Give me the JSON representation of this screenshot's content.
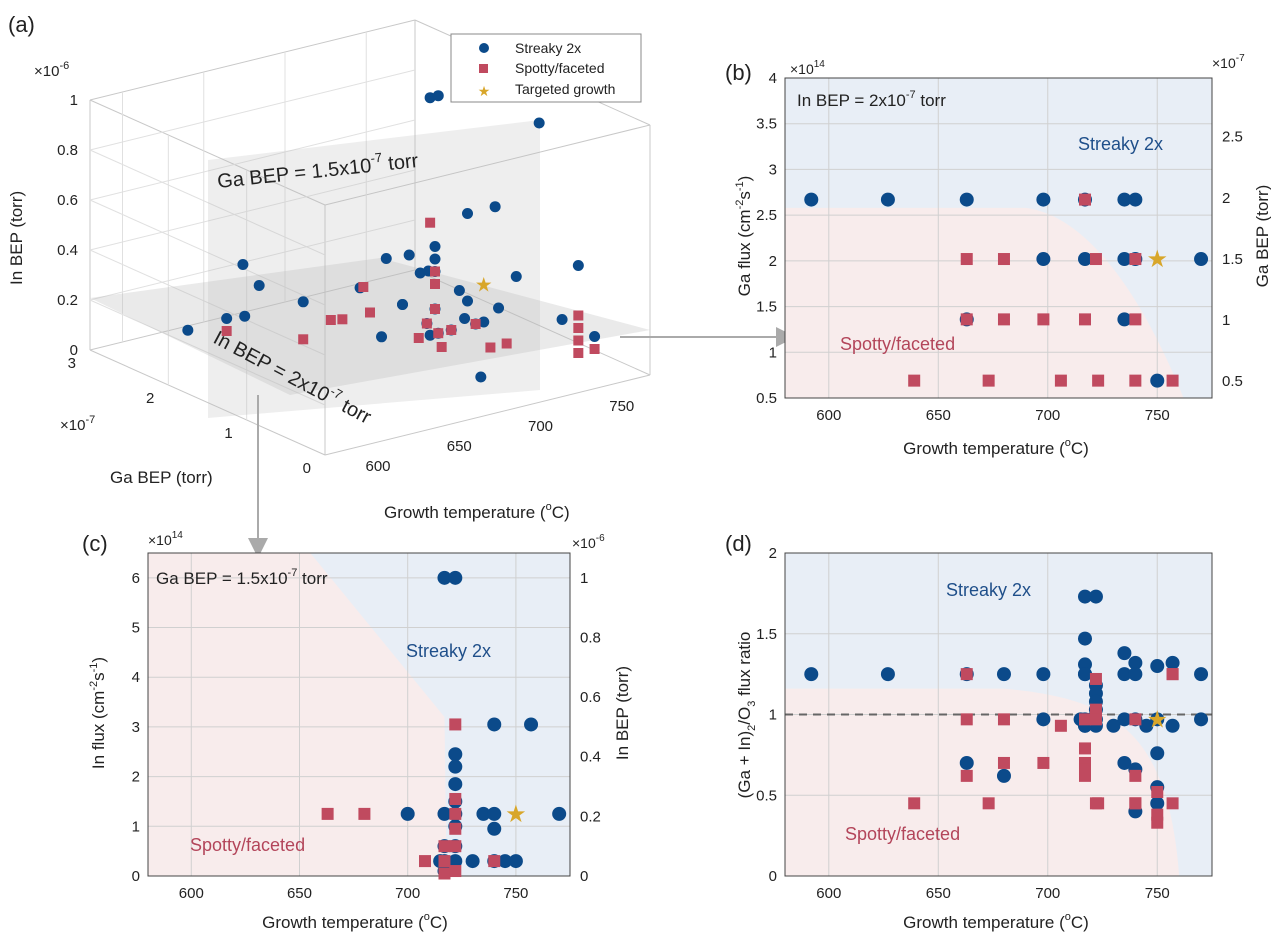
{
  "colors": {
    "streaky": "#0b4a8a",
    "spotty": "#c04a5f",
    "star": "#d8a62a",
    "region_blue": "#e8eef6",
    "region_pink": "#f8ecec"
  },
  "panels": {
    "a": {
      "letter": "(a)",
      "exponent_in": "×10",
      "exponent_in_sup": "-6",
      "exponent_ga": "×10",
      "exponent_ga_sup": "-7",
      "zlabel": "In BEP (torr)",
      "ylabel": "Ga BEP (torr)",
      "xlabel": "Growth temperature (",
      "xlabel_sup": "o",
      "xlabel_end": "C)",
      "plane_vertical": "Ga BEP = 1.5x10",
      "plane_vertical_sup": "-7",
      "plane_vertical_end": " torr",
      "plane_horizontal": "In BEP = 2x10",
      "plane_horizontal_sup": "-7",
      "plane_horizontal_end": " torr",
      "legend": [
        "Streaky 2x",
        "Spotty/faceted",
        "Targeted growth"
      ],
      "ztick_labels": [
        "0",
        "0.2",
        "0.4",
        "0.6",
        "0.8",
        "1"
      ],
      "ytick_labels": [
        "0",
        "1",
        "2",
        "3"
      ],
      "xtick_labels": [
        "600",
        "650",
        "700",
        "750"
      ]
    },
    "b": {
      "letter": "(b)",
      "annotation": "In BEP = 2x10",
      "annotation_sup": "-7",
      "annotation_end": " torr",
      "region_top": "Streaky 2x",
      "region_bottom": "Spotty/faceted",
      "ylabel": "Ga flux (cm",
      "ylabel_sup1": "-2",
      "ylabel_mid": "s",
      "ylabel_sup2": "-1",
      "ylabel_end": ")",
      "y2label": "Ga BEP (torr)",
      "xlabel": "Growth temperature (",
      "xlabel_sup": "o",
      "xlabel_end": "C)",
      "exponent_left": "×10",
      "exponent_left_sup": "14",
      "exponent_right": "×10",
      "exponent_right_sup": "-7"
    },
    "c": {
      "letter": "(c)",
      "annotation": "Ga BEP = 1.5x10",
      "annotation_sup": "-7",
      "annotation_end": " torr",
      "region_top": "Streaky 2x",
      "region_bottom": "Spotty/faceted",
      "ylabel": "In flux (cm",
      "ylabel_sup1": "-2",
      "ylabel_mid": "s",
      "ylabel_sup2": "-1",
      "ylabel_end": ")",
      "y2label": "In BEP (torr)",
      "xlabel": "Growth temperature (",
      "xlabel_sup": "o",
      "xlabel_end": "C)",
      "exponent_left": "×10",
      "exponent_left_sup": "14",
      "exponent_right": "×10",
      "exponent_right_sup": "-6"
    },
    "d": {
      "letter": "(d)",
      "region_top": "Streaky 2x",
      "region_bottom": "Spotty/faceted",
      "ylabel": "(Ga + In)",
      "ylabel_sub1": "2",
      "ylabel_mid": "/O",
      "ylabel_sub2": "3",
      "ylabel_end": " flux ratio",
      "xlabel": "Growth temperature (",
      "xlabel_sup": "o",
      "xlabel_end": "C)"
    }
  },
  "chart_data": [
    {
      "panel": "a",
      "type": "scatter",
      "xlabel": "Growth temperature (oC)",
      "ylabel": "Ga BEP (torr) ×10^-7",
      "zlabel": "In BEP (torr) ×10^-6",
      "xlim": [
        580,
        780
      ],
      "ylim": [
        0,
        3
      ],
      "zlim": [
        0,
        1
      ],
      "legend": "top-center",
      "series": [
        {
          "name": "Streaky 2x",
          "points": [
            [
              717,
              1.5,
              1.0
            ],
            [
              722,
              1.5,
              1.0
            ],
            [
              760,
              1.0,
              0.9
            ],
            [
              592,
              2.0,
              0.2
            ],
            [
              627,
              2.0,
              0.2
            ],
            [
              663,
              2.0,
              0.2
            ],
            [
              698,
              2.0,
              0.2
            ],
            [
              735,
              2.0,
              0.2
            ],
            [
              740,
              2.0,
              0.2
            ],
            [
              700,
              1.5,
              0.2
            ],
            [
              740,
              1.5,
              0.5
            ],
            [
              757,
              1.5,
              0.5
            ],
            [
              770,
              1.5,
              0.2
            ],
            [
              735,
              1.0,
              0.2
            ],
            [
              663,
              1.0,
              0.2
            ],
            [
              750,
              0.5,
              0.2
            ],
            [
              717,
              1.5,
              0.05
            ],
            [
              722,
              1.5,
              0.05
            ],
            [
              715,
              1.5,
              0.1
            ],
            [
              720,
              1.5,
              0.15
            ],
            [
              720,
              1.5,
              0.3
            ],
            [
              720,
              1.5,
              0.35
            ],
            [
              720,
              1.5,
              0.4
            ],
            [
              730,
              1.5,
              0.05
            ],
            [
              745,
              1.5,
              0.05
            ],
            [
              750,
              1.5,
              0.05
            ],
            [
              740,
              1.5,
              0.15
            ],
            [
              735,
              1.5,
              0.2
            ],
            [
              700,
              1.5,
              0.2
            ],
            [
              680,
              1.0,
              0.5
            ],
            [
              690,
              0.5,
              0.3
            ],
            [
              650,
              2.5,
              0.3
            ],
            [
              640,
              2.5,
              0.1
            ],
            [
              760,
              0.5,
              0.4
            ],
            [
              770,
              0.5,
              0.1
            ],
            [
              700,
              0.5,
              0.05
            ],
            [
              660,
              2.5,
              0.2
            ],
            [
              690,
              1.5,
              0.4
            ]
          ]
        },
        {
          "name": "Spotty/faceted",
          "points": [
            [
              663,
              1.5,
              0.2
            ],
            [
              680,
              1.5,
              0.2
            ],
            [
              717,
              1.5,
              0.5
            ],
            [
              722,
              1.5,
              0.05
            ],
            [
              745,
              1.5,
              0.05
            ],
            [
              740,
              1.0,
              0.05
            ],
            [
              760,
              0.5,
              0.05
            ],
            [
              760,
              0.5,
              0.1
            ],
            [
              760,
              0.5,
              0.15
            ],
            [
              760,
              0.5,
              0.2
            ],
            [
              710,
              1.5,
              0.05
            ],
            [
              715,
              1.5,
              0.1
            ],
            [
              720,
              1.5,
              0.15
            ],
            [
              720,
              1.5,
              0.25
            ],
            [
              720,
              1.5,
              0.3
            ],
            [
              730,
              1.5,
              0.05
            ],
            [
              663,
              2.0,
              0.05
            ],
            [
              680,
              2.0,
              0.1
            ],
            [
              700,
              2.0,
              0.2
            ],
            [
              640,
              2.5,
              0.05
            ],
            [
              700,
              1.0,
              0.1
            ],
            [
              730,
              1.0,
              0.05
            ],
            [
              770,
              0.5,
              0.05
            ]
          ]
        },
        {
          "name": "Targeted growth",
          "points": [
            [
              750,
              1.5,
              0.2
            ]
          ]
        }
      ]
    },
    {
      "panel": "b",
      "type": "scatter",
      "xlabel": "Growth temperature (oC)",
      "ylabel": "Ga flux (cm-2s-1) ×10^14",
      "y2label": "Ga BEP (torr) ×10^-7",
      "xlim": [
        580,
        775
      ],
      "ylim": [
        0.5,
        4
      ],
      "y2ticks": [
        "0.5",
        "1",
        "1.5",
        "2",
        "2.5"
      ],
      "xticks": [
        "600",
        "650",
        "700",
        "750"
      ],
      "yticks": [
        "0.5",
        "1",
        "1.5",
        "2",
        "2.5",
        "3",
        "3.5",
        "4"
      ],
      "series": [
        {
          "name": "Streaky 2x",
          "x": [
            592,
            627,
            663,
            698,
            717,
            735,
            740,
            698,
            717,
            735,
            740,
            770,
            663,
            735,
            750
          ],
          "y": [
            2.67,
            2.67,
            2.67,
            2.67,
            2.67,
            2.67,
            2.67,
            2.02,
            2.02,
            2.02,
            2.02,
            2.02,
            1.36,
            1.36,
            0.69
          ]
        },
        {
          "name": "Spotty/faceted",
          "x": [
            717,
            663,
            680,
            722,
            740,
            663,
            680,
            698,
            717,
            740,
            639,
            673,
            706,
            723,
            740,
            757
          ],
          "y": [
            2.67,
            2.02,
            2.02,
            2.02,
            2.02,
            1.36,
            1.36,
            1.36,
            1.36,
            1.36,
            0.69,
            0.69,
            0.69,
            0.69,
            0.69,
            0.69
          ]
        },
        {
          "name": "Targeted growth",
          "x": [
            750
          ],
          "y": [
            2.02
          ]
        }
      ]
    },
    {
      "panel": "c",
      "type": "scatter",
      "xlabel": "Growth temperature (oC)",
      "ylabel": "In flux (cm-2s-1) ×10^14",
      "y2label": "In BEP (torr) ×10^-6",
      "xlim": [
        580,
        775
      ],
      "ylim": [
        0,
        6.5
      ],
      "xticks": [
        "600",
        "650",
        "700",
        "750"
      ],
      "yticks": [
        "0",
        "1",
        "2",
        "3",
        "4",
        "5",
        "6"
      ],
      "y2ticks": [
        "0",
        "0.2",
        "0.4",
        "0.6",
        "0.8",
        "1"
      ],
      "series": [
        {
          "name": "Streaky 2x",
          "x": [
            717,
            722,
            740,
            757,
            700,
            717,
            722,
            735,
            740,
            770,
            722,
            722,
            722,
            722,
            722,
            740,
            717,
            722,
            717,
            722,
            715,
            740,
            745,
            750,
            730,
            717
          ],
          "y": [
            6.0,
            6.0,
            3.05,
            3.05,
            1.25,
            1.25,
            1.25,
            1.25,
            1.25,
            1.25,
            2.45,
            2.2,
            1.85,
            1.5,
            1.0,
            0.95,
            0.6,
            0.6,
            0.3,
            0.3,
            0.3,
            0.3,
            0.3,
            0.3,
            0.3,
            0.1
          ]
        },
        {
          "name": "Spotty/faceted",
          "x": [
            722,
            663,
            680,
            722,
            722,
            722,
            722,
            708,
            717,
            717,
            722,
            740,
            717
          ],
          "y": [
            3.05,
            1.25,
            1.25,
            1.55,
            1.25,
            0.95,
            0.6,
            0.3,
            0.3,
            0.05,
            0.1,
            0.3,
            0.6
          ]
        },
        {
          "name": "Targeted growth",
          "x": [
            750
          ],
          "y": [
            1.25
          ]
        }
      ]
    },
    {
      "panel": "d",
      "type": "scatter",
      "xlabel": "Growth temperature ((oC)",
      "ylabel": "(Ga + In)2/O3 flux ratio",
      "xlim": [
        580,
        775
      ],
      "ylim": [
        0,
        2
      ],
      "reference_line": 1,
      "xticks": [
        "600",
        "650",
        "700",
        "750"
      ],
      "yticks": [
        "0",
        "0.5",
        "1",
        "1.5",
        "2"
      ],
      "series": [
        {
          "name": "Streaky 2x",
          "x": [
            717,
            722,
            717,
            717,
            717,
            592,
            627,
            663,
            680,
            698,
            717,
            735,
            740,
            750,
            757,
            770,
            735,
            740,
            722,
            722,
            722,
            722,
            698,
            717,
            722,
            735,
            740,
            750,
            757,
            770,
            663,
            680,
            717,
            722,
            735,
            740,
            750,
            750,
            750,
            740,
            717,
            730,
            745,
            715,
            720
          ],
          "y": [
            1.73,
            1.73,
            1.47,
            1.31,
            1.25,
            1.25,
            1.25,
            1.25,
            1.25,
            1.25,
            1.25,
            1.38,
            1.32,
            1.3,
            1.32,
            1.25,
            1.25,
            1.25,
            1.18,
            1.13,
            1.08,
            1.03,
            0.97,
            0.97,
            0.97,
            0.97,
            0.97,
            0.97,
            0.93,
            0.97,
            0.7,
            0.62,
            0.93,
            0.93,
            0.7,
            0.66,
            0.76,
            0.55,
            0.45,
            0.4,
            0.93,
            0.93,
            0.93,
            0.97,
            0.97
          ]
        },
        {
          "name": "Spotty/faceted",
          "x": [
            663,
            663,
            663,
            680,
            680,
            698,
            706,
            717,
            717,
            717,
            717,
            717,
            722,
            722,
            722,
            722,
            740,
            740,
            740,
            750,
            750,
            750,
            757,
            639,
            673,
            723,
            740,
            757,
            757
          ],
          "y": [
            1.25,
            0.97,
            0.62,
            0.97,
            0.7,
            0.7,
            0.93,
            0.97,
            0.79,
            0.7,
            0.66,
            0.62,
            1.22,
            1.03,
            0.97,
            0.45,
            0.97,
            0.62,
            0.45,
            0.52,
            0.38,
            0.33,
            1.25,
            0.45,
            0.45,
            0.45,
            0.45,
            0.45,
            1.25
          ]
        },
        {
          "name": "Targeted growth",
          "x": [
            750
          ],
          "y": [
            0.97
          ]
        }
      ]
    }
  ]
}
